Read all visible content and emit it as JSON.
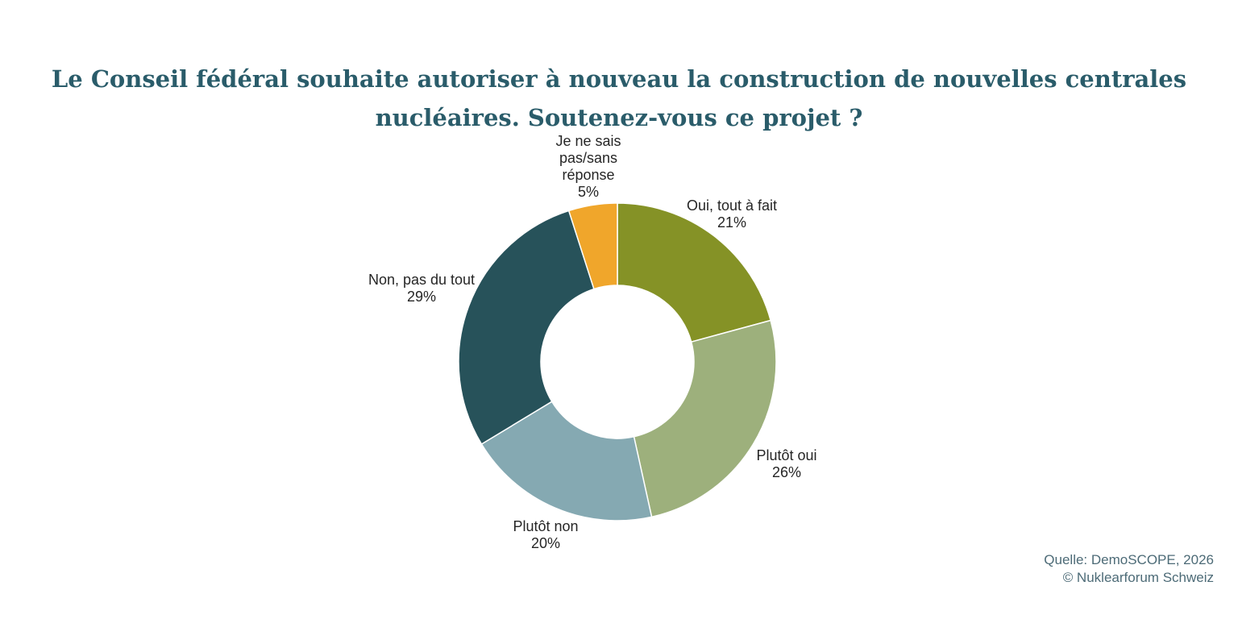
{
  "title": {
    "line1": "Le Conseil fédéral souhaite autoriser à nouveau la construction de nouvelles centrales",
    "line2": "nucléaires. Soutenez-vous ce projet ?",
    "color": "#2A5C6A"
  },
  "source": {
    "line1": "Quelle: DemoSCOPE, 2026",
    "line2": "© Nuklearforum Schweiz",
    "color": "#4D6B77"
  },
  "chart_data": {
    "type": "pie",
    "subtype": "donut",
    "title": "Le Conseil fédéral souhaite autoriser à nouveau la construction de nouvelles centrales nucléaires. Soutenez-vous ce projet ?",
    "start_angle_deg": 0,
    "direction": "clockwise",
    "inner_radius_ratio": 0.48,
    "legend": "none",
    "data_labels": "outside",
    "background": "#ffffff",
    "slices": [
      {
        "label": "Oui, tout à fait",
        "value": 21,
        "pct_label": "21%",
        "color": "#859226"
      },
      {
        "label": "Plutôt oui",
        "value": 26,
        "pct_label": "26%",
        "color": "#9DB07C"
      },
      {
        "label": "Plutôt non",
        "value": 20,
        "pct_label": "20%",
        "color": "#85A9B2"
      },
      {
        "label": "Non, pas du tout",
        "value": 29,
        "pct_label": "29%",
        "color": "#27525A"
      },
      {
        "label": "Je ne sais\npas/sans\nréponse",
        "value": 5,
        "pct_label": "5%",
        "color": "#F0A62B"
      }
    ]
  }
}
